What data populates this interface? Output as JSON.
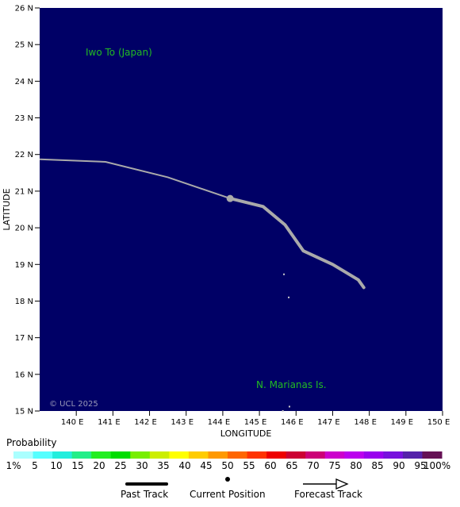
{
  "map": {
    "axis_x_label": "LONGITUDE",
    "axis_y_label": "LATITUDE",
    "lat_ticks": [
      "26 N",
      "25 N",
      "24 N",
      "23 N",
      "22 N",
      "21 N",
      "20 N",
      "19 N",
      "18 N",
      "17 N",
      "16 N",
      "15 N"
    ],
    "lon_ticks": [
      "140 E",
      "141 E",
      "142 E",
      "143 E",
      "144 E",
      "145 E",
      "146 E",
      "147 E",
      "148 E",
      "149 E",
      "150 E"
    ],
    "lat_range": [
      15,
      26
    ],
    "lon_range": [
      139,
      150
    ],
    "place_labels": {
      "iwo_to": "Iwo To (Japan)",
      "marianas": "N. Marianas Is."
    },
    "copyright": "© UCL 2025",
    "ocean_color": "#000066",
    "place_label_color": "#22bb22",
    "track_color": "#aaaaaa",
    "past_track": [
      {
        "lon": 139.0,
        "lat": 21.87
      },
      {
        "lon": 140.8,
        "lat": 21.8
      },
      {
        "lon": 142.5,
        "lat": 21.38
      },
      {
        "lon": 144.2,
        "lat": 20.8
      }
    ],
    "current_position": {
      "lon": 144.2,
      "lat": 20.8
    },
    "forecast_track": [
      {
        "lon": 144.2,
        "lat": 20.8
      },
      {
        "lon": 145.1,
        "lat": 20.58
      },
      {
        "lon": 145.7,
        "lat": 20.08
      },
      {
        "lon": 146.2,
        "lat": 19.37
      },
      {
        "lon": 147.0,
        "lat": 19.0
      },
      {
        "lon": 147.7,
        "lat": 18.58
      },
      {
        "lon": 147.85,
        "lat": 18.37
      }
    ],
    "islands": [
      {
        "lon": 145.67,
        "lat": 18.73
      },
      {
        "lon": 145.8,
        "lat": 18.1
      },
      {
        "lon": 145.82,
        "lat": 15.12
      },
      {
        "lon": 145.64,
        "lat": 15.0
      }
    ]
  },
  "legend": {
    "title": "Probability",
    "colors": [
      "#aaffff",
      "#55ffff",
      "#22eedd",
      "#22ee88",
      "#22ee22",
      "#00dd00",
      "#77ee00",
      "#ccee00",
      "#ffff00",
      "#ffcc00",
      "#ff9900",
      "#ff6600",
      "#ff3300",
      "#ee0000",
      "#cc0033",
      "#cc0077",
      "#cc00cc",
      "#bb00ee",
      "#9900ee",
      "#7711dd",
      "#5522aa",
      "#661155"
    ],
    "labels": [
      "1%",
      "5",
      "10",
      "15",
      "20",
      "25",
      "30",
      "35",
      "40",
      "45",
      "50",
      "55",
      "60",
      "65",
      "70",
      "75",
      "80",
      "85",
      "90",
      "95",
      "100%"
    ]
  },
  "key": {
    "past_track": "Past Track",
    "current_position": "Current Position",
    "forecast_track": "Forecast Track"
  }
}
